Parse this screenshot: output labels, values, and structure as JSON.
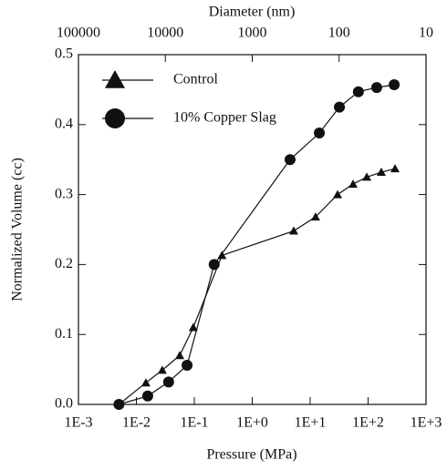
{
  "chart_data": {
    "type": "line",
    "x2label": "Diameter (nm)",
    "xlabel": "Pressure (MPa)",
    "ylabel": "Normalized Volume (cc)",
    "xscale": "log",
    "xlim": [
      0.001,
      1000
    ],
    "xticks": [
      {
        "value": 0.001,
        "label": "1E-3"
      },
      {
        "value": 0.01,
        "label": "1E-2"
      },
      {
        "value": 0.1,
        "label": "1E-1"
      },
      {
        "value": 1,
        "label": "1E+0"
      },
      {
        "value": 10,
        "label": "1E+1"
      },
      {
        "value": 100,
        "label": "1E+2"
      },
      {
        "value": 1000,
        "label": "1E+3"
      }
    ],
    "x2lim": [
      100000,
      10
    ],
    "x2ticks": [
      100000,
      10000,
      1000,
      100,
      10
    ],
    "ylim": [
      0,
      0.5
    ],
    "yticks": [
      {
        "value": 0,
        "label": "0.0"
      },
      0.1,
      0.2,
      0.3,
      0.4,
      0.5
    ],
    "legend": "upper left",
    "series": [
      {
        "name": "Control",
        "color": "#111111",
        "marker": "triangle",
        "x": [
          0.005,
          0.0146,
          0.028,
          0.056,
          0.096,
          0.3,
          5.2,
          12.4,
          29.7,
          55,
          95,
          169,
          292
        ],
        "values": [
          0,
          0.031,
          0.049,
          0.07,
          0.11,
          0.213,
          0.248,
          0.268,
          0.3,
          0.315,
          0.325,
          0.332,
          0.337
        ]
      },
      {
        "name": "10% Copper Slag",
        "color": "#111111",
        "marker": "circle",
        "x": [
          0.005,
          0.0157,
          0.036,
          0.075,
          0.22,
          4.5,
          14.4,
          32,
          68,
          141,
          282
        ],
        "values": [
          0,
          0.012,
          0.032,
          0.056,
          0.2,
          0.35,
          0.388,
          0.425,
          0.447,
          0.453,
          0.457
        ]
      }
    ]
  }
}
